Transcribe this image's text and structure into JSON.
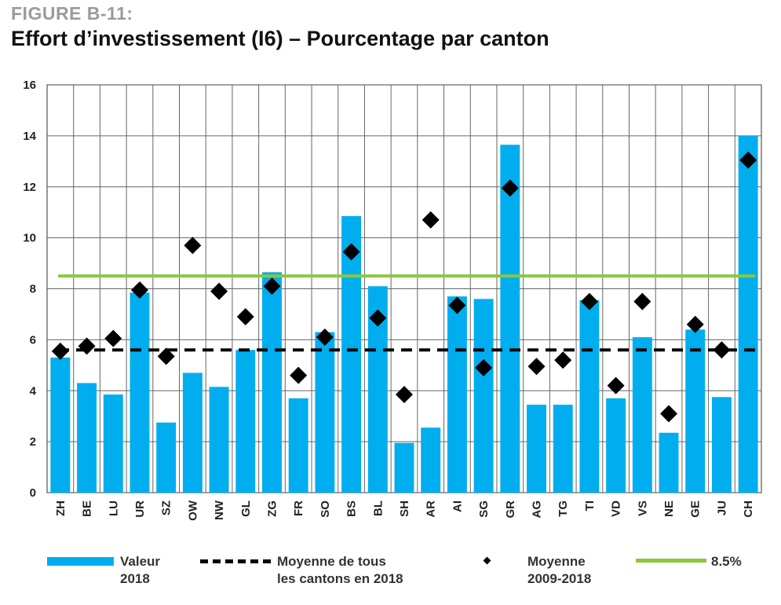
{
  "figure_label": "FIGURE B-11:",
  "title": "Effort d’investissement (I6) – Pourcentage par canton",
  "chart_data": {
    "type": "bar",
    "categories": [
      "ZH",
      "BE",
      "LU",
      "UR",
      "SZ",
      "OW",
      "NW",
      "GL",
      "ZG",
      "FR",
      "SO",
      "BS",
      "BL",
      "SH",
      "AR",
      "AI",
      "SG",
      "GR",
      "AG",
      "TG",
      "TI",
      "VD",
      "VS",
      "NE",
      "GE",
      "JU",
      "CH"
    ],
    "series": [
      {
        "name": "Valeur 2018",
        "type": "bar",
        "color": "#00aeef",
        "values": [
          5.3,
          4.3,
          3.85,
          7.85,
          2.75,
          4.7,
          4.15,
          5.6,
          8.65,
          3.7,
          6.3,
          10.85,
          8.1,
          1.95,
          2.55,
          7.7,
          7.6,
          13.65,
          3.45,
          3.45,
          7.55,
          3.7,
          6.1,
          2.35,
          6.4,
          3.75,
          14.0
        ]
      },
      {
        "name": "Moyenne 2009-2018",
        "type": "scatter",
        "marker": "diamond",
        "color": "#000000",
        "values": [
          5.55,
          5.75,
          6.05,
          7.95,
          5.35,
          9.7,
          7.9,
          6.9,
          8.1,
          4.6,
          6.1,
          9.45,
          6.85,
          3.85,
          10.7,
          7.35,
          4.9,
          11.95,
          4.95,
          5.2,
          7.5,
          4.2,
          7.5,
          3.1,
          6.6,
          5.6,
          13.05
        ]
      },
      {
        "name": "Moyenne de tous les cantons en 2018",
        "type": "hline",
        "style": "dashed",
        "color": "#000000",
        "value": 5.6
      },
      {
        "name": "8.5%",
        "type": "hline",
        "style": "solid",
        "color": "#8cc63f",
        "value": 8.5
      }
    ],
    "ylim": [
      0,
      16
    ],
    "yticks": [
      0,
      2,
      4,
      6,
      8,
      10,
      12,
      14,
      16
    ],
    "grid": true,
    "legend_placement": "bottom"
  },
  "legend": {
    "bar_label_1": "Valeur",
    "bar_label_2": "2018",
    "dash_label_1": "Moyenne de tous",
    "dash_label_2": "les cantons en 2018",
    "dot_label_1": "Moyenne",
    "dot_label_2": "2009-2018",
    "green_label": "8.5%"
  }
}
